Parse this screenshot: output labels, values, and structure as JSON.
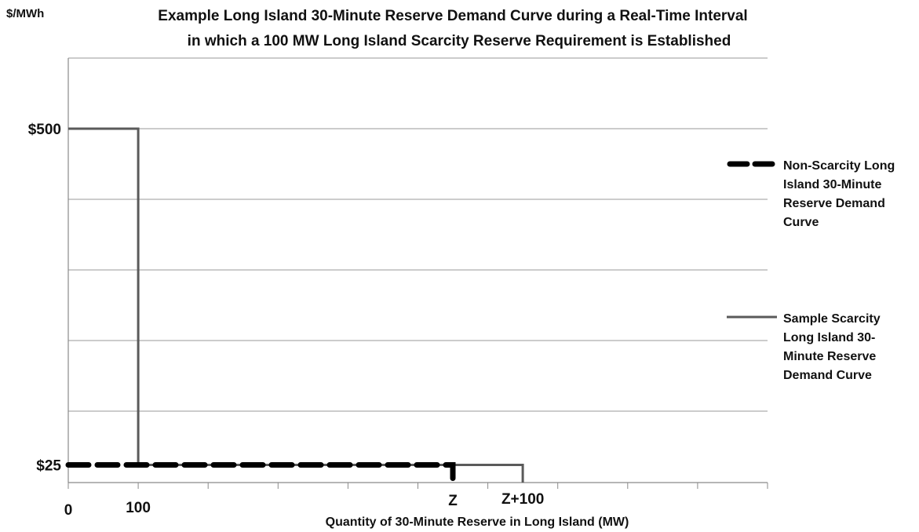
{
  "chart_data": {
    "type": "line",
    "title_lines": [
      "Example Long Island 30-Minute Reserve Demand Curve during a Real-Time Interval",
      "in which a 100 MW Long Island Scarcity Reserve Requirement is Established"
    ],
    "ylabel": "$/MWh",
    "xlabel": "Quantity of 30-Minute Reserve in Long Island (MW)",
    "x_ticks": [
      {
        "label": "0",
        "value": 0
      },
      {
        "label": "100",
        "value": 100
      },
      {
        "label": "Z",
        "value": 550
      },
      {
        "label": "Z+100",
        "value": 650
      }
    ],
    "y_ticks": [
      {
        "label": "$25",
        "value": 25
      },
      {
        "label": "$500",
        "value": 500
      }
    ],
    "xlim": [
      0,
      1000
    ],
    "ylim": [
      0,
      550
    ],
    "grid": true,
    "grid_y_values": [
      25,
      125,
      225,
      325,
      425,
      525,
      625
    ],
    "legend_position": "right",
    "series": [
      {
        "name": "Non-Scarcity Long Island 30-Minute Reserve Demand Curve",
        "legend_lines": [
          "Non-Scarcity Long",
          "Island 30-Minute",
          "Reserve Demand",
          "Curve"
        ],
        "style": "dashed",
        "color": "#000000",
        "points": [
          [
            0,
            25
          ],
          [
            550,
            25
          ],
          [
            550,
            0
          ]
        ]
      },
      {
        "name": "Sample Scarcity Long Island 30-Minute Reserve Demand Curve",
        "legend_lines": [
          "Sample Scarcity",
          "Long Island 30-",
          "Minute Reserve",
          "Demand Curve"
        ],
        "style": "solid",
        "color": "#5a5a5a",
        "points": [
          [
            0,
            500
          ],
          [
            100,
            500
          ],
          [
            100,
            25
          ],
          [
            650,
            25
          ],
          [
            650,
            0
          ]
        ]
      }
    ]
  }
}
